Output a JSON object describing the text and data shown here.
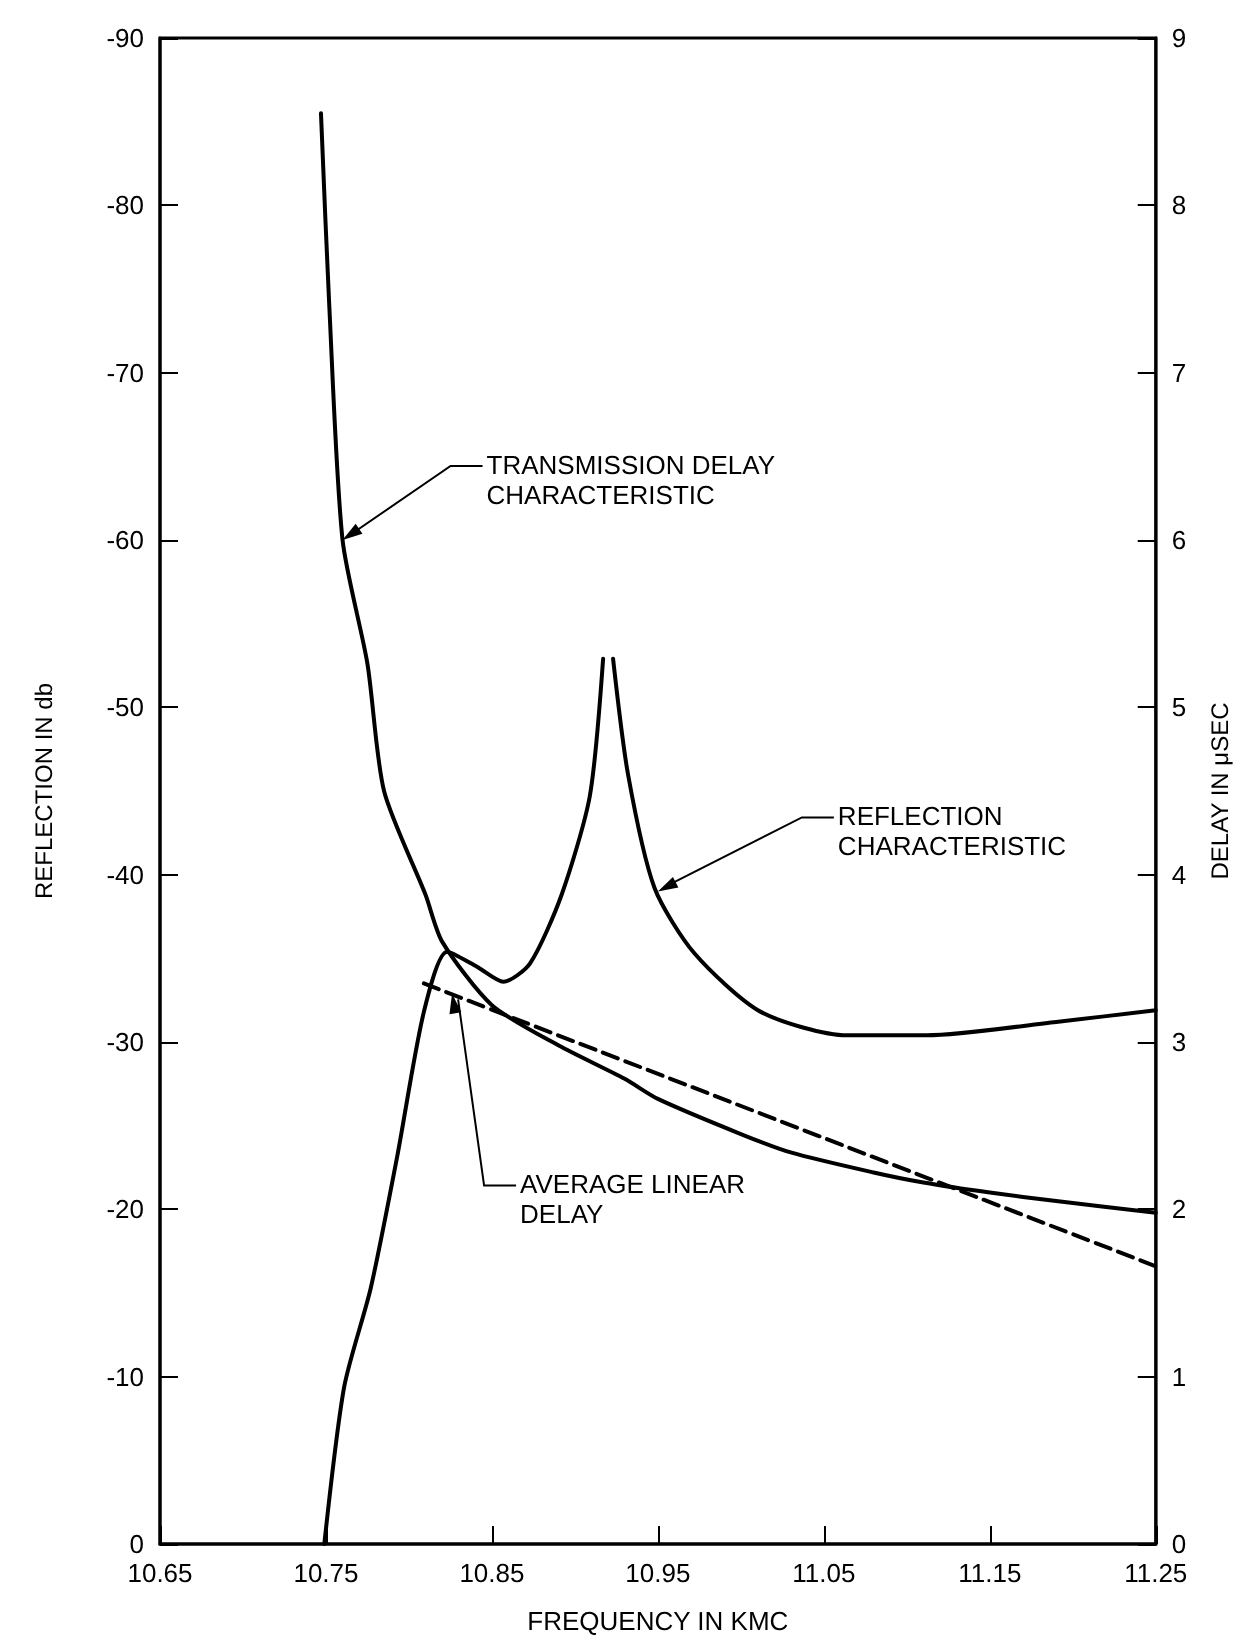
{
  "chart_data": {
    "type": "line",
    "xlabel": "FREQUENCY IN KMC",
    "ylabel": "REFLECTION IN db",
    "y2label": "DELAY IN μSEC",
    "xlim": [
      10.65,
      11.25
    ],
    "xticks": [
      10.65,
      10.75,
      10.85,
      10.95,
      11.05,
      11.15,
      11.25
    ],
    "ylim": [
      0,
      -90
    ],
    "yticks": [
      0,
      -10,
      -20,
      -30,
      -40,
      -50,
      -60,
      -70,
      -80,
      -90
    ],
    "y2lim": [
      0,
      9
    ],
    "y2ticks": [
      0,
      1,
      2,
      3,
      4,
      5,
      6,
      7,
      8,
      9
    ],
    "grid": false,
    "marker": "none",
    "series": [
      {
        "color": "#000000",
        "axis": "y2",
        "line_style": "solid",
        "x": [
          10.747,
          10.752,
          10.76,
          10.775,
          10.785,
          10.81,
          10.82,
          10.85,
          10.89,
          10.93,
          10.95,
          11.0,
          11.03,
          11.08,
          11.11,
          11.15,
          11.19,
          11.25
        ],
        "values": [
          8.55,
          7.4,
          6.0,
          5.26,
          4.5,
          3.88,
          3.6,
          3.22,
          2.98,
          2.78,
          2.66,
          2.45,
          2.34,
          2.22,
          2.16,
          2.1,
          2.05,
          1.98
        ]
      },
      {
        "color": "#000000",
        "axis": "y",
        "line_style": "solid",
        "x": [
          10.749,
          10.761,
          10.777,
          10.793,
          10.809,
          10.823,
          10.841,
          10.857,
          10.873,
          10.892,
          10.909,
          10.917,
          10.92,
          10.923,
          10.932,
          10.948,
          10.972,
          11.012,
          11.064,
          11.112,
          11.19,
          11.25
        ],
        "values": [
          0,
          -9.4,
          -15.3,
          -23.2,
          -31.8,
          -35.4,
          -34.5,
          -33.6,
          -34.7,
          -38.8,
          -44.7,
          -52.9,
          null,
          -52.9,
          -46,
          -39.2,
          -35.3,
          -31.8,
          -30.4,
          -30.4,
          -31.2,
          -31.9
        ]
      },
      {
        "color": "#000000",
        "axis": "y2",
        "line_style": "dashed",
        "x": [
          10.809,
          11.25
        ],
        "values": [
          3.35,
          1.66
        ]
      }
    ],
    "annotations": [
      {
        "text": "TRANSMISSION DELAY CHARACTERISTIC",
        "x": 10.76,
        "y": -60
      },
      {
        "text": "REFLECTION CHARACTERISTIC",
        "x": 10.95,
        "y": -39
      },
      {
        "text": "AVERAGE LINEAR DELAY",
        "x": 10.826,
        "y": -32.9
      }
    ]
  }
}
